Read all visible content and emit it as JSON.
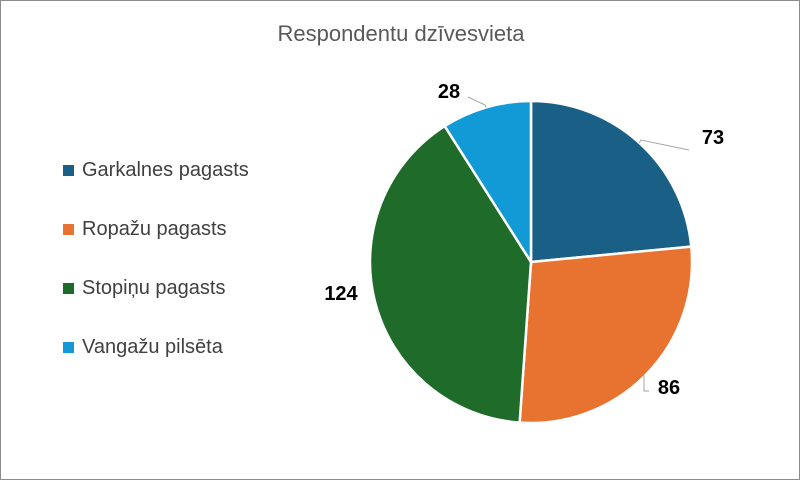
{
  "chart_data": {
    "type": "pie",
    "title": "Respondentu dzīvesvieta",
    "legend_position": "left",
    "categories": [
      "Garkalnes pagasts",
      "Ropažu pagasts",
      "Stopiņu pagasts",
      "Vangažu pilsēta"
    ],
    "values": [
      73,
      86,
      124,
      28
    ],
    "colors": [
      "#1a5f85",
      "#e87330",
      "#1e6b2a",
      "#129ad6"
    ]
  }
}
